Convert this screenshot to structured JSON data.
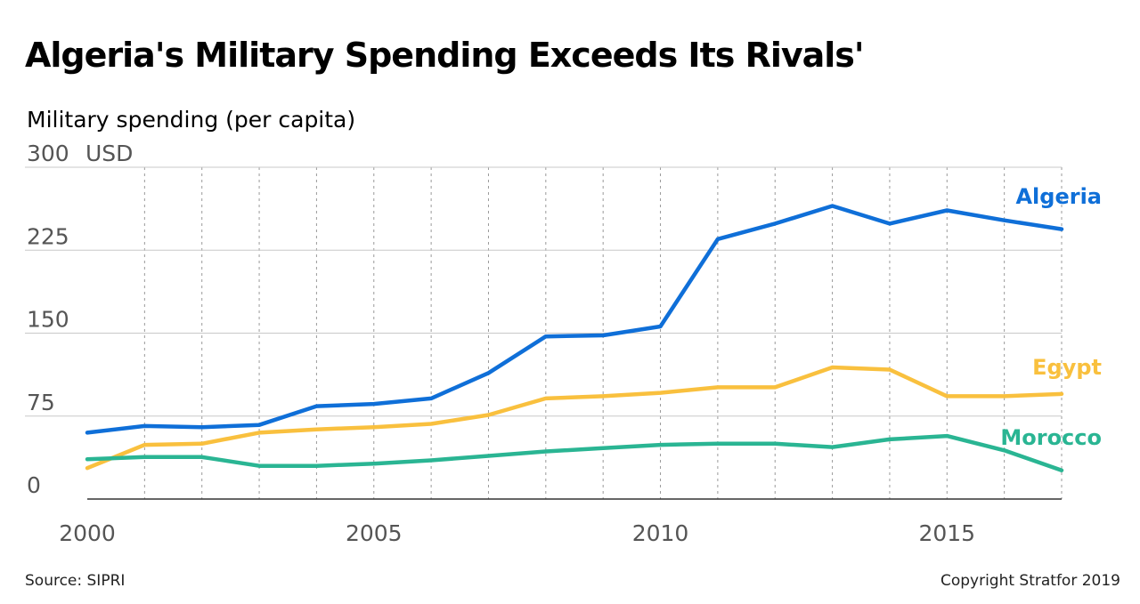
{
  "title": "Algeria's Military Spending Exceeds Its Rivals'",
  "subtitle": "Military spending (per capita)",
  "source": "Source: SIPRI",
  "copyright": "Copyright Stratfor 2019",
  "chart_data": {
    "type": "line",
    "ylabel": "Military spending (per capita)",
    "y_unit": "USD",
    "ylim": [
      0,
      300
    ],
    "y_ticks": [
      0,
      75,
      150,
      225,
      300
    ],
    "xlim": [
      2000,
      2017
    ],
    "x_ticks": [
      2000,
      2005,
      2010,
      2015
    ],
    "x": [
      2000,
      2001,
      2002,
      2003,
      2004,
      2005,
      2006,
      2007,
      2008,
      2009,
      2010,
      2011,
      2012,
      2013,
      2014,
      2015,
      2016,
      2017
    ],
    "grid": "horizontal solid, vertical dashed yearly",
    "legend": "inline labels at right end of lines",
    "series": [
      {
        "name": "Algeria",
        "color": "#0f6fd8",
        "values": [
          60,
          66,
          65,
          67,
          84,
          86,
          91,
          114,
          147,
          148,
          156,
          235,
          249,
          265,
          249,
          261,
          252,
          244
        ]
      },
      {
        "name": "Egypt",
        "color": "#f9c03e",
        "values": [
          28,
          49,
          50,
          60,
          63,
          65,
          68,
          76,
          91,
          93,
          96,
          101,
          101,
          119,
          117,
          93,
          93,
          95
        ]
      },
      {
        "name": "Morocco",
        "color": "#2ab593",
        "values": [
          36,
          38,
          38,
          30,
          30,
          32,
          35,
          39,
          43,
          46,
          49,
          50,
          50,
          47,
          54,
          57,
          44,
          26
        ]
      }
    ]
  }
}
